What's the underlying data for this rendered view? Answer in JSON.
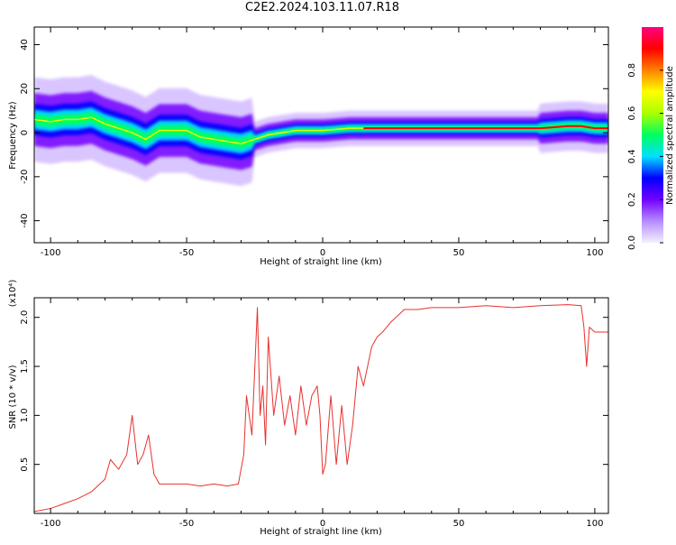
{
  "title": "C2E2.2024.103.11.07.R18",
  "colors": {
    "axis": "#000000",
    "snr_line": "#e8312e",
    "spectrum_background": "#ffffff"
  },
  "chart_data": [
    {
      "type": "heatmap",
      "name": "spectrogram",
      "xlabel": "Height of straight line (km)",
      "ylabel": "Frequency (Hz)",
      "xlim": [
        -106,
        105
      ],
      "ylim": [
        -50,
        48
      ],
      "x_ticks": [
        -100,
        -50,
        0,
        50,
        100
      ],
      "y_ticks": [
        -40,
        -20,
        0,
        20,
        40
      ],
      "grid": false,
      "ridge": {
        "x": [
          -106,
          -100,
          -95,
          -90,
          -85,
          -80,
          -75,
          -70,
          -65,
          -60,
          -55,
          -50,
          -45,
          -40,
          -35,
          -30,
          -25,
          -20,
          -15,
          -10,
          -5,
          0,
          10,
          20,
          30,
          40,
          50,
          60,
          70,
          80,
          90,
          95,
          100,
          105
        ],
        "frequency": [
          6,
          5,
          6,
          6,
          7,
          4,
          2,
          0,
          -3,
          1,
          1,
          1,
          -2,
          -3,
          -4,
          -5,
          -3,
          -1,
          0,
          1,
          1,
          1,
          2,
          2,
          2,
          2,
          2,
          2,
          2,
          2,
          3,
          3,
          2,
          2
        ]
      },
      "colorbar": {
        "label": "Normalized spectral amplitude",
        "range": [
          0,
          1
        ],
        "ticks": [
          "0.0",
          "0.2",
          "0.4",
          "0.6",
          "0.8"
        ],
        "colormap": [
          "#f4f0ff",
          "#b58cff",
          "#7300ff",
          "#0000ff",
          "#00e0ff",
          "#00ff60",
          "#aaff00",
          "#ffff00",
          "#ff8000",
          "#ff0000",
          "#ff0080"
        ]
      }
    },
    {
      "type": "line",
      "name": "snr",
      "xlabel": "Height of straight line (km)",
      "ylabel": "SNR (10 * v/v)",
      "y_multiplier": "(x10⁴)",
      "xlim": [
        -106,
        105
      ],
      "ylim": [
        0,
        2.2
      ],
      "x_ticks": [
        -100,
        -50,
        0,
        50,
        100
      ],
      "y_ticks": [
        0.5,
        1.0,
        1.5,
        2.0
      ],
      "grid": false,
      "series": [
        {
          "x": [
            -106,
            -100,
            -95,
            -90,
            -85,
            -80,
            -78,
            -75,
            -72,
            -70,
            -68,
            -66,
            -64,
            -62,
            -60,
            -55,
            -50,
            -45,
            -40,
            -35,
            -31,
            -29,
            -28,
            -26,
            -24,
            -23,
            -22,
            -21,
            -20,
            -18,
            -16,
            -14,
            -12,
            -10,
            -8,
            -6,
            -4,
            -2,
            -1,
            0,
            1,
            3,
            5,
            7,
            9,
            11,
            13,
            15,
            18,
            20,
            22,
            25,
            30,
            35,
            40,
            50,
            60,
            70,
            80,
            90,
            95,
            96,
            97,
            98,
            100,
            105
          ],
          "y": [
            0.02,
            0.05,
            0.1,
            0.15,
            0.22,
            0.35,
            0.55,
            0.45,
            0.6,
            1.0,
            0.5,
            0.6,
            0.8,
            0.4,
            0.3,
            0.3,
            0.3,
            0.28,
            0.3,
            0.28,
            0.3,
            0.6,
            1.2,
            0.8,
            2.1,
            1.0,
            1.3,
            0.7,
            1.8,
            1.0,
            1.4,
            0.9,
            1.2,
            0.8,
            1.3,
            0.9,
            1.2,
            1.3,
            1.0,
            0.4,
            0.5,
            1.2,
            0.5,
            1.1,
            0.5,
            0.9,
            1.5,
            1.3,
            1.7,
            1.8,
            1.85,
            1.95,
            2.08,
            2.08,
            2.1,
            2.1,
            2.12,
            2.1,
            2.12,
            2.13,
            2.12,
            1.9,
            1.5,
            1.9,
            1.85,
            1.85
          ]
        }
      ]
    }
  ]
}
